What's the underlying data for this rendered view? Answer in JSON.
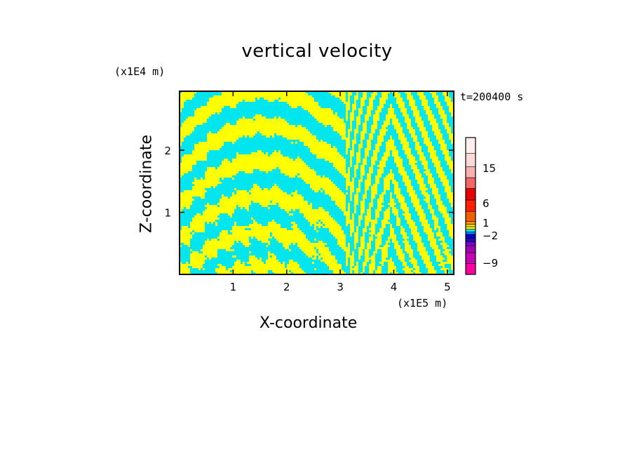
{
  "chart_data": {
    "type": "heatmap",
    "title": "vertical velocity",
    "xlabel": "X-coordinate",
    "ylabel": "Z-coordinate",
    "x_unit": "(x1E5 m)",
    "z_unit": "(x1E4 m)",
    "time_label": "t=200400 s",
    "xlim": [
      0,
      5.12
    ],
    "zlim": [
      0,
      2.95
    ],
    "x_ticks": [
      "1",
      "2",
      "3",
      "4",
      "5"
    ],
    "z_ticks": [
      "1",
      "2"
    ],
    "dominant_colors": {
      "positive_small": "#ffff00",
      "negative_small": "#00e5ee"
    },
    "colorbar": {
      "levels": [
        {
          "color": "#ff00a0"
        },
        {
          "color": "#c800b4"
        },
        {
          "color": "#a000b4"
        },
        {
          "color": "#7800c8"
        },
        {
          "color": "#2800c8"
        },
        {
          "color": "#0000c8"
        },
        {
          "color": "#0080ff"
        },
        {
          "color": "#00e5ee"
        },
        {
          "color": "#ffff00"
        },
        {
          "color": "#ffd800"
        },
        {
          "color": "#ff9400"
        },
        {
          "color": "#f06000"
        },
        {
          "color": "#ff2000"
        },
        {
          "color": "#e80000"
        },
        {
          "color": "#f06868"
        },
        {
          "color": "#f8b0b0"
        },
        {
          "color": "#ffd8d8"
        },
        {
          "color": "#ffeeee"
        }
      ],
      "tick_labels": [
        "15",
        "6",
        "1",
        "−2",
        "−9"
      ]
    }
  }
}
